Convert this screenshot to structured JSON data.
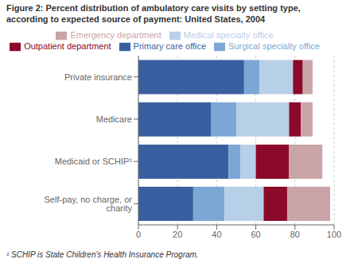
{
  "chart_data": {
    "type": "bar",
    "orientation": "horizontal",
    "stacked": true,
    "title": "Figure 2: Percent distribution of ambulatory care visits by setting type, according to expected source of payment: United States, 2004",
    "annotations": [
      "¹ SCHIP is State Children's Health Insurance Program."
    ],
    "categories": [
      "Private insurance",
      "Medicare",
      "Medicaid or SCHIP¹",
      "Self-pay, no charge, or charity"
    ],
    "series": [
      {
        "name": "Primary care office",
        "color": "#3a5fa0",
        "values": [
          54,
          37,
          46,
          28
        ]
      },
      {
        "name": "Surgical specialty office",
        "color": "#7ba7d4",
        "values": [
          8,
          13,
          6,
          16
        ]
      },
      {
        "name": "Medical specialty office",
        "color": "#b8cfe8",
        "values": [
          17,
          27,
          8,
          20
        ]
      },
      {
        "name": "Outpatient department",
        "color": "#8b0a2a",
        "values": [
          5,
          6,
          17,
          12
        ]
      },
      {
        "name": "Emergency department",
        "color": "#c9a4a8",
        "values": [
          5,
          6,
          17,
          22
        ]
      }
    ],
    "xlim": [
      0,
      100
    ],
    "xticks": [
      0,
      20,
      40,
      60,
      80,
      100
    ],
    "grid": true,
    "legend": "top"
  }
}
